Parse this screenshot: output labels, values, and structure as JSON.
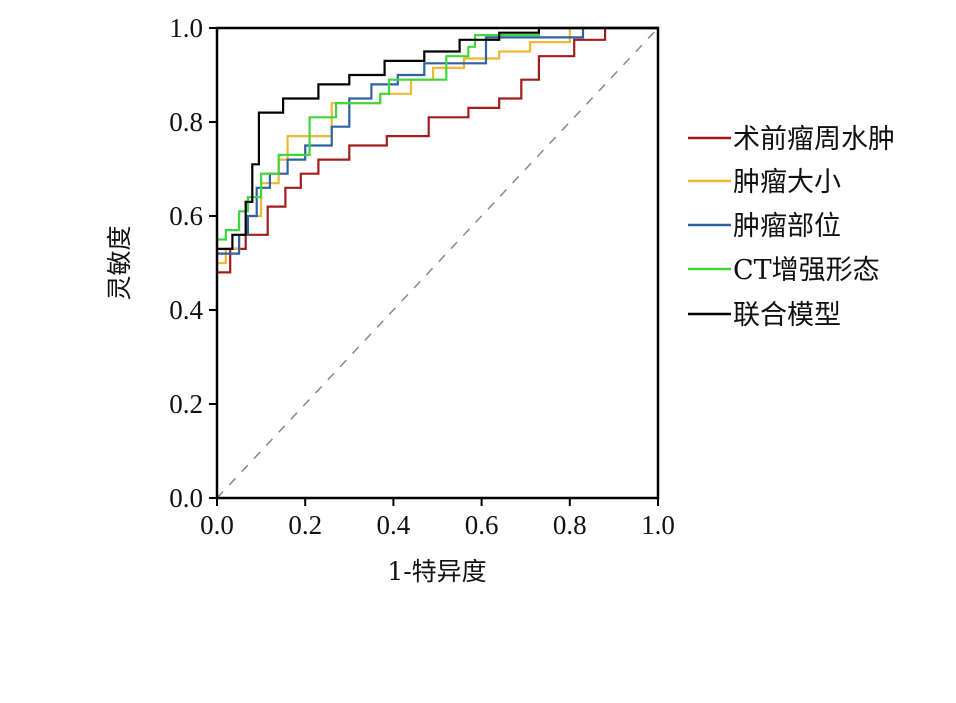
{
  "chart_data": {
    "type": "line",
    "title": "",
    "xlabel": "1-特异度",
    "ylabel": "灵敏度",
    "xlim": [
      0,
      1
    ],
    "ylim": [
      0,
      1
    ],
    "xticks": [
      "0.0",
      "0.2",
      "0.4",
      "0.6",
      "0.8",
      "1.0"
    ],
    "yticks": [
      "0.0",
      "0.2",
      "0.4",
      "0.6",
      "0.8",
      "1.0"
    ],
    "grid": false,
    "legend_position": "right",
    "reference_line": {
      "name": "diagonal",
      "style": "dashed",
      "color": "#888888"
    },
    "series": [
      {
        "name": "术前瘤周水肿",
        "color": "#a31c1c",
        "points": [
          [
            0,
            0.48
          ],
          [
            0.03,
            0.48
          ],
          [
            0.03,
            0.53
          ],
          [
            0.065,
            0.53
          ],
          [
            0.065,
            0.56
          ],
          [
            0.115,
            0.56
          ],
          [
            0.115,
            0.62
          ],
          [
            0.155,
            0.62
          ],
          [
            0.155,
            0.66
          ],
          [
            0.19,
            0.66
          ],
          [
            0.19,
            0.69
          ],
          [
            0.23,
            0.69
          ],
          [
            0.23,
            0.72
          ],
          [
            0.3,
            0.72
          ],
          [
            0.3,
            0.75
          ],
          [
            0.385,
            0.75
          ],
          [
            0.385,
            0.77
          ],
          [
            0.48,
            0.77
          ],
          [
            0.48,
            0.81
          ],
          [
            0.57,
            0.81
          ],
          [
            0.57,
            0.83
          ],
          [
            0.64,
            0.83
          ],
          [
            0.64,
            0.85
          ],
          [
            0.69,
            0.85
          ],
          [
            0.69,
            0.89
          ],
          [
            0.73,
            0.89
          ],
          [
            0.73,
            0.94
          ],
          [
            0.81,
            0.94
          ],
          [
            0.81,
            0.975
          ],
          [
            0.88,
            0.975
          ],
          [
            0.88,
            1
          ],
          [
            1,
            1
          ]
        ]
      },
      {
        "name": "肿瘤大小",
        "color": "#f0b834",
        "points": [
          [
            0,
            0.5
          ],
          [
            0.02,
            0.5
          ],
          [
            0.02,
            0.53
          ],
          [
            0.05,
            0.53
          ],
          [
            0.05,
            0.56
          ],
          [
            0.07,
            0.56
          ],
          [
            0.07,
            0.6
          ],
          [
            0.1,
            0.6
          ],
          [
            0.1,
            0.67
          ],
          [
            0.14,
            0.67
          ],
          [
            0.14,
            0.72
          ],
          [
            0.16,
            0.72
          ],
          [
            0.16,
            0.77
          ],
          [
            0.26,
            0.77
          ],
          [
            0.26,
            0.84
          ],
          [
            0.37,
            0.84
          ],
          [
            0.37,
            0.86
          ],
          [
            0.44,
            0.86
          ],
          [
            0.44,
            0.89
          ],
          [
            0.49,
            0.89
          ],
          [
            0.49,
            0.915
          ],
          [
            0.56,
            0.915
          ],
          [
            0.56,
            0.935
          ],
          [
            0.64,
            0.935
          ],
          [
            0.64,
            0.95
          ],
          [
            0.71,
            0.95
          ],
          [
            0.71,
            0.97
          ],
          [
            0.8,
            0.97
          ],
          [
            0.8,
            1
          ],
          [
            1,
            1
          ]
        ]
      },
      {
        "name": "肿瘤部位",
        "color": "#2f62a3",
        "points": [
          [
            0,
            0.52
          ],
          [
            0.05,
            0.52
          ],
          [
            0.05,
            0.56
          ],
          [
            0.07,
            0.56
          ],
          [
            0.07,
            0.6
          ],
          [
            0.09,
            0.6
          ],
          [
            0.09,
            0.66
          ],
          [
            0.12,
            0.66
          ],
          [
            0.12,
            0.69
          ],
          [
            0.16,
            0.69
          ],
          [
            0.16,
            0.72
          ],
          [
            0.2,
            0.72
          ],
          [
            0.2,
            0.75
          ],
          [
            0.26,
            0.75
          ],
          [
            0.26,
            0.79
          ],
          [
            0.3,
            0.79
          ],
          [
            0.3,
            0.85
          ],
          [
            0.35,
            0.85
          ],
          [
            0.35,
            0.88
          ],
          [
            0.41,
            0.88
          ],
          [
            0.41,
            0.9
          ],
          [
            0.47,
            0.9
          ],
          [
            0.47,
            0.925
          ],
          [
            0.61,
            0.925
          ],
          [
            0.61,
            0.98
          ],
          [
            0.83,
            0.98
          ],
          [
            0.83,
            1
          ],
          [
            1,
            1
          ]
        ]
      },
      {
        "name": "CT增强形态",
        "color": "#3fd63a",
        "points": [
          [
            0,
            0.55
          ],
          [
            0.02,
            0.55
          ],
          [
            0.02,
            0.57
          ],
          [
            0.05,
            0.57
          ],
          [
            0.05,
            0.61
          ],
          [
            0.07,
            0.61
          ],
          [
            0.07,
            0.64
          ],
          [
            0.1,
            0.64
          ],
          [
            0.1,
            0.69
          ],
          [
            0.14,
            0.69
          ],
          [
            0.14,
            0.73
          ],
          [
            0.21,
            0.73
          ],
          [
            0.21,
            0.81
          ],
          [
            0.27,
            0.81
          ],
          [
            0.27,
            0.84
          ],
          [
            0.37,
            0.84
          ],
          [
            0.37,
            0.86
          ],
          [
            0.39,
            0.86
          ],
          [
            0.39,
            0.89
          ],
          [
            0.52,
            0.89
          ],
          [
            0.52,
            0.94
          ],
          [
            0.57,
            0.94
          ],
          [
            0.57,
            0.96
          ],
          [
            0.585,
            0.96
          ],
          [
            0.585,
            0.985
          ],
          [
            0.73,
            0.985
          ],
          [
            0.73,
            1
          ],
          [
            1,
            1
          ]
        ]
      },
      {
        "name": "联合模型",
        "color": "#000000",
        "points": [
          [
            0,
            0.53
          ],
          [
            0.035,
            0.53
          ],
          [
            0.035,
            0.56
          ],
          [
            0.065,
            0.56
          ],
          [
            0.065,
            0.63
          ],
          [
            0.08,
            0.63
          ],
          [
            0.08,
            0.71
          ],
          [
            0.095,
            0.71
          ],
          [
            0.095,
            0.78
          ],
          [
            0.095,
            0.82
          ],
          [
            0.15,
            0.82
          ],
          [
            0.15,
            0.85
          ],
          [
            0.23,
            0.85
          ],
          [
            0.23,
            0.88
          ],
          [
            0.3,
            0.88
          ],
          [
            0.3,
            0.9
          ],
          [
            0.38,
            0.9
          ],
          [
            0.38,
            0.93
          ],
          [
            0.47,
            0.93
          ],
          [
            0.47,
            0.95
          ],
          [
            0.55,
            0.95
          ],
          [
            0.55,
            0.975
          ],
          [
            0.64,
            0.975
          ],
          [
            0.64,
            0.99
          ],
          [
            0.73,
            0.99
          ],
          [
            0.73,
            1
          ],
          [
            1,
            1
          ]
        ]
      }
    ]
  }
}
